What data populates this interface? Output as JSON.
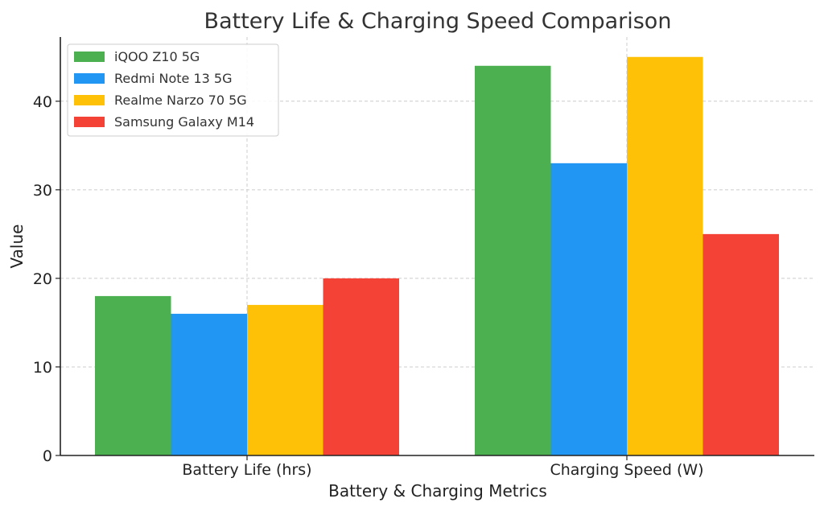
{
  "chart_data": {
    "type": "bar",
    "title": "Battery Life & Charging Speed Comparison",
    "xlabel": "Battery & Charging Metrics",
    "ylabel": "Value",
    "categories": [
      "Battery Life (hrs)",
      "Charging Speed (W)"
    ],
    "series": [
      {
        "name": "iQOO Z10 5G",
        "color": "#4CAF50",
        "values": [
          18,
          44
        ]
      },
      {
        "name": "Redmi Note 13 5G",
        "color": "#2196F3",
        "values": [
          16,
          33
        ]
      },
      {
        "name": "Realme Narzo 70 5G",
        "color": "#FFC107",
        "values": [
          17,
          45
        ]
      },
      {
        "name": "Samsung Galaxy M14",
        "color": "#F44336",
        "values": [
          20,
          25
        ]
      }
    ],
    "ylim": [
      0,
      47.25
    ],
    "yticks": [
      0,
      10,
      20,
      30,
      40
    ],
    "grid": true,
    "legend_position": "top-left"
  }
}
